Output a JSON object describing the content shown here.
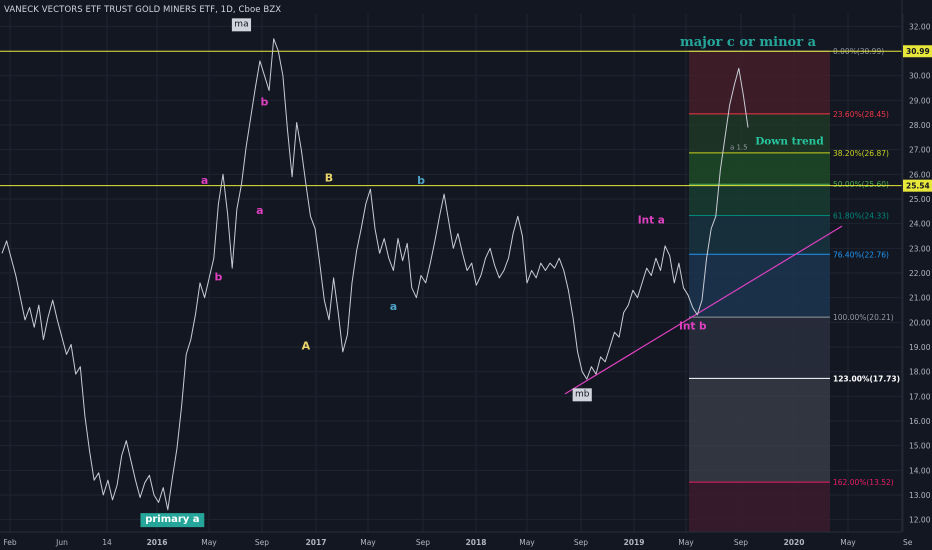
{
  "chart_data": {
    "type": "line",
    "title": "VANECK VECTORS ETF TRUST GOLD MINERS ETF, 1D, Cboe BZX",
    "ylim": [
      11.5,
      32.5
    ],
    "y_ticks": [
      12,
      13,
      14,
      15,
      16,
      17,
      18,
      19,
      20,
      21,
      22,
      23,
      24,
      25,
      26,
      27,
      28,
      29,
      30,
      31,
      32
    ],
    "x_ticks": [
      "Feb",
      "Jun",
      "14",
      "2016",
      "May",
      "Sep",
      "2017",
      "May",
      "Sep",
      "2018",
      "May",
      "Sep",
      "2019",
      "May",
      "Sep",
      "2020",
      "May",
      "Se"
    ],
    "series": [
      {
        "values": [
          22.8,
          23.3,
          22.6,
          21.9,
          21.0,
          20.1,
          20.6,
          19.8,
          20.7,
          19.3,
          20.2,
          20.9,
          20.1,
          19.4,
          18.7,
          19.1,
          17.9,
          18.2,
          16.2,
          14.8,
          13.6,
          13.9,
          13.0,
          13.6,
          12.8,
          13.4,
          14.6,
          15.2,
          14.4,
          13.6,
          12.9,
          13.5,
          13.8,
          13.0,
          12.7,
          13.3,
          12.4,
          13.7,
          14.9,
          16.6,
          18.7,
          19.3,
          20.3,
          21.6,
          21.0,
          21.8,
          22.6,
          24.8,
          26.0,
          24.4,
          22.2,
          24.6,
          25.6,
          27.1,
          28.3,
          29.5,
          30.6,
          30.0,
          29.4,
          31.5,
          31.0,
          30.0,
          27.8,
          25.9,
          28.1,
          27.0,
          25.6,
          24.3,
          23.8,
          22.4,
          20.9,
          20.1,
          21.8,
          20.4,
          18.8,
          19.5,
          21.6,
          22.9,
          23.8,
          24.8,
          25.4,
          23.8,
          22.8,
          23.4,
          22.6,
          22.1,
          23.4,
          22.5,
          23.2,
          21.4,
          21.0,
          21.9,
          21.6,
          22.4,
          23.3,
          24.3,
          25.2,
          24.1,
          23.0,
          23.6,
          22.8,
          22.1,
          22.4,
          21.5,
          21.9,
          22.6,
          23.0,
          22.3,
          21.8,
          22.1,
          22.6,
          23.6,
          24.3,
          23.5,
          21.6,
          22.1,
          21.8,
          22.4,
          22.1,
          22.4,
          22.2,
          22.6,
          22.1,
          21.3,
          20.2,
          18.8,
          18.0,
          17.7,
          18.2,
          17.9,
          18.6,
          18.4,
          19.0,
          19.6,
          19.4,
          20.4,
          20.7,
          21.3,
          21.0,
          21.6,
          22.2,
          21.9,
          22.6,
          22.1,
          23.1,
          22.7,
          21.6,
          22.4,
          21.4,
          21.1,
          20.6,
          20.3,
          20.9,
          22.6,
          23.8,
          24.3,
          26.2,
          27.5,
          28.8,
          29.6,
          30.3,
          29.2,
          27.9
        ]
      }
    ],
    "levels": [
      {
        "label": "0.00%(30.99)",
        "value": 30.99
      },
      {
        "label": "23.60%(28.45)",
        "value": 28.45
      },
      {
        "label": "38.20%(26.87)",
        "value": 26.87
      },
      {
        "label": "50.00%(25.60)",
        "value": 25.6
      },
      {
        "label": "61.80%(24.33)",
        "value": 24.33
      },
      {
        "label": "76.40%(22.76)",
        "value": 22.76
      },
      {
        "label": "100.00%(20.21)",
        "value": 20.21
      },
      {
        "label": "123.00%(17.73)",
        "value": 17.73
      },
      {
        "label": "162.00%(13.52)",
        "value": 13.52
      }
    ],
    "horizontal_lines": [
      {
        "label": "30.99",
        "value": 30.99
      },
      {
        "label": "25.54",
        "value": 25.54
      }
    ],
    "annotations": [
      {
        "text": "ma",
        "x": 52,
        "y": 32.0
      },
      {
        "text": "b",
        "x": 57,
        "y": 28.8
      },
      {
        "text": "a",
        "x": 44,
        "y": 25.6
      },
      {
        "text": "a",
        "x": 56,
        "y": 24.4
      },
      {
        "text": "b",
        "x": 47,
        "y": 21.7
      },
      {
        "text": "B",
        "x": 71,
        "y": 25.7
      },
      {
        "text": "b",
        "x": 91,
        "y": 25.6
      },
      {
        "text": "a",
        "x": 85,
        "y": 20.5
      },
      {
        "text": "A",
        "x": 66,
        "y": 18.9
      },
      {
        "text": "Int a",
        "x": 141,
        "y": 24.0
      },
      {
        "text": "Int b",
        "x": 150,
        "y": 19.7
      },
      {
        "text": "mb",
        "x": 126,
        "y": 17.0
      },
      {
        "text": "primary a",
        "x": 37,
        "y": 11.9
      },
      {
        "text": "major c or minor a",
        "x": 162,
        "y": 31.2
      },
      {
        "text": "Down trend",
        "x": 171,
        "y": 27.2
      },
      {
        "text": "a 1.5",
        "x": 160,
        "y": 27.0
      }
    ]
  }
}
